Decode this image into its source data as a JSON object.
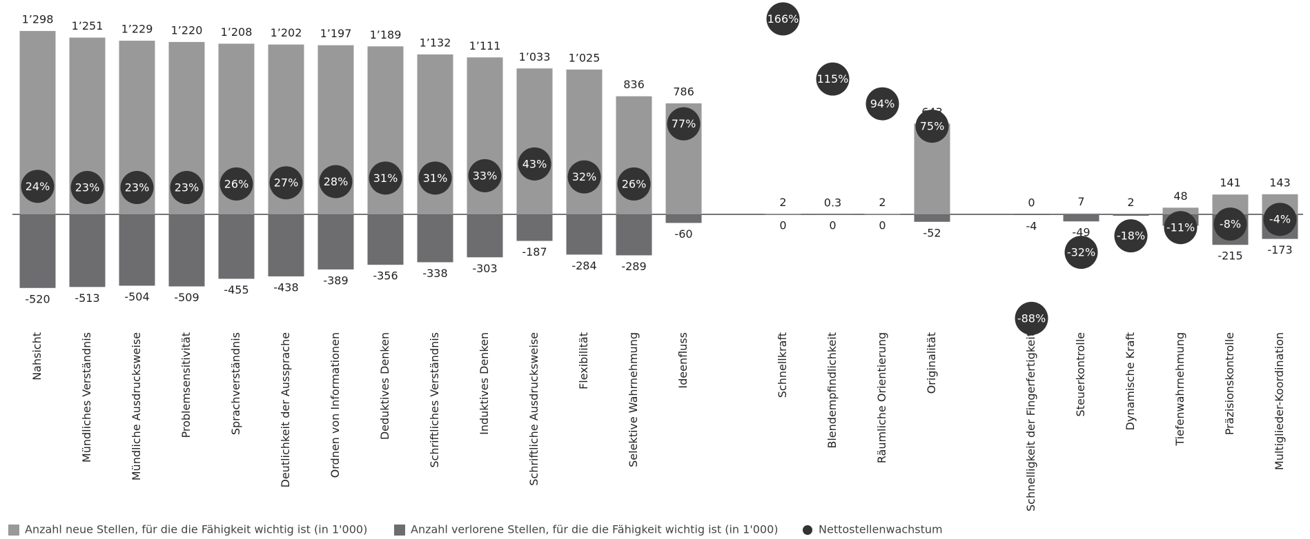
{
  "chart_data": {
    "type": "bar",
    "categories": [
      "Nahsicht",
      "Mündliches Verständnis",
      "Mündliche Ausdrucksweise",
      "Problemsensitivität",
      "Sprachverständnis",
      "Deutlichkeit der Aussprache",
      "Ordnen von Informationen",
      "Deduktives Denken",
      "Schriftliches Verständnis",
      "Induktives Denken",
      "Schriftliche Ausdrucksweise",
      "Flexibilität",
      "Selektive Wahrnehmung",
      "Ideenfluss",
      null,
      "Schnellkraft",
      "Blendempfindlichkeit",
      "Räumliche Orientierung",
      "Originalität",
      null,
      "Schnelligkeit der Fingerfertigkeit",
      "Steuerkontrolle",
      "Dynamische Kraft",
      "Tiefenwahrnehmung",
      "Präzisionskontrolle",
      "Multiglieder-Koordination"
    ],
    "series": [
      {
        "name": "Anzahl neue Stellen, für die die Fähigkeit wichtig ist (in 1'000)",
        "color": "#999999",
        "values": [
          1298,
          1251,
          1229,
          1220,
          1208,
          1202,
          1197,
          1189,
          1132,
          1111,
          1033,
          1025,
          836,
          786,
          null,
          2,
          0.3,
          2,
          643,
          null,
          0,
          7,
          2,
          48,
          141,
          143
        ],
        "value_labels": [
          "1’298",
          "1’251",
          "1’229",
          "1’220",
          "1’208",
          "1’202",
          "1’197",
          "1’189",
          "1’132",
          "1’111",
          "1’033",
          "1’025",
          "836",
          "786",
          null,
          "2",
          "0.3",
          "2",
          "643",
          null,
          "0",
          "7",
          "2",
          "48",
          "141",
          "143"
        ]
      },
      {
        "name": "Anzahl verlorene Stellen, für die die Fähigkeit wichtig ist (in 1'000)",
        "color": "#6d6d70",
        "values": [
          -520,
          -513,
          -504,
          -509,
          -455,
          -438,
          -389,
          -356,
          -338,
          -303,
          -187,
          -284,
          -289,
          -60,
          null,
          0,
          0,
          0,
          -52,
          null,
          -4,
          -49,
          -9,
          -80,
          -215,
          -173
        ]
      },
      {
        "name": "Nettostellenwachstum",
        "color": "#333333",
        "axis": "y2",
        "values": [
          24,
          23,
          23,
          23,
          26,
          27,
          28,
          31,
          31,
          33,
          43,
          32,
          26,
          77,
          null,
          166,
          115,
          94,
          75,
          null,
          -88,
          -32,
          -18,
          -11,
          -8,
          -4
        ],
        "value_labels": [
          "24%",
          "23%",
          "23%",
          "23%",
          "26%",
          "27%",
          "28%",
          "31%",
          "31%",
          "33%",
          "43%",
          "32%",
          "26%",
          "77%",
          null,
          "166%",
          "115%",
          "94%",
          "75%",
          null,
          "-88%",
          "-32%",
          "-18%",
          "-11%",
          "-8%",
          "-4%"
        ]
      }
    ],
    "ylim": [
      -560,
      1400
    ],
    "y2lim": [
      -67,
      168
    ]
  }
}
